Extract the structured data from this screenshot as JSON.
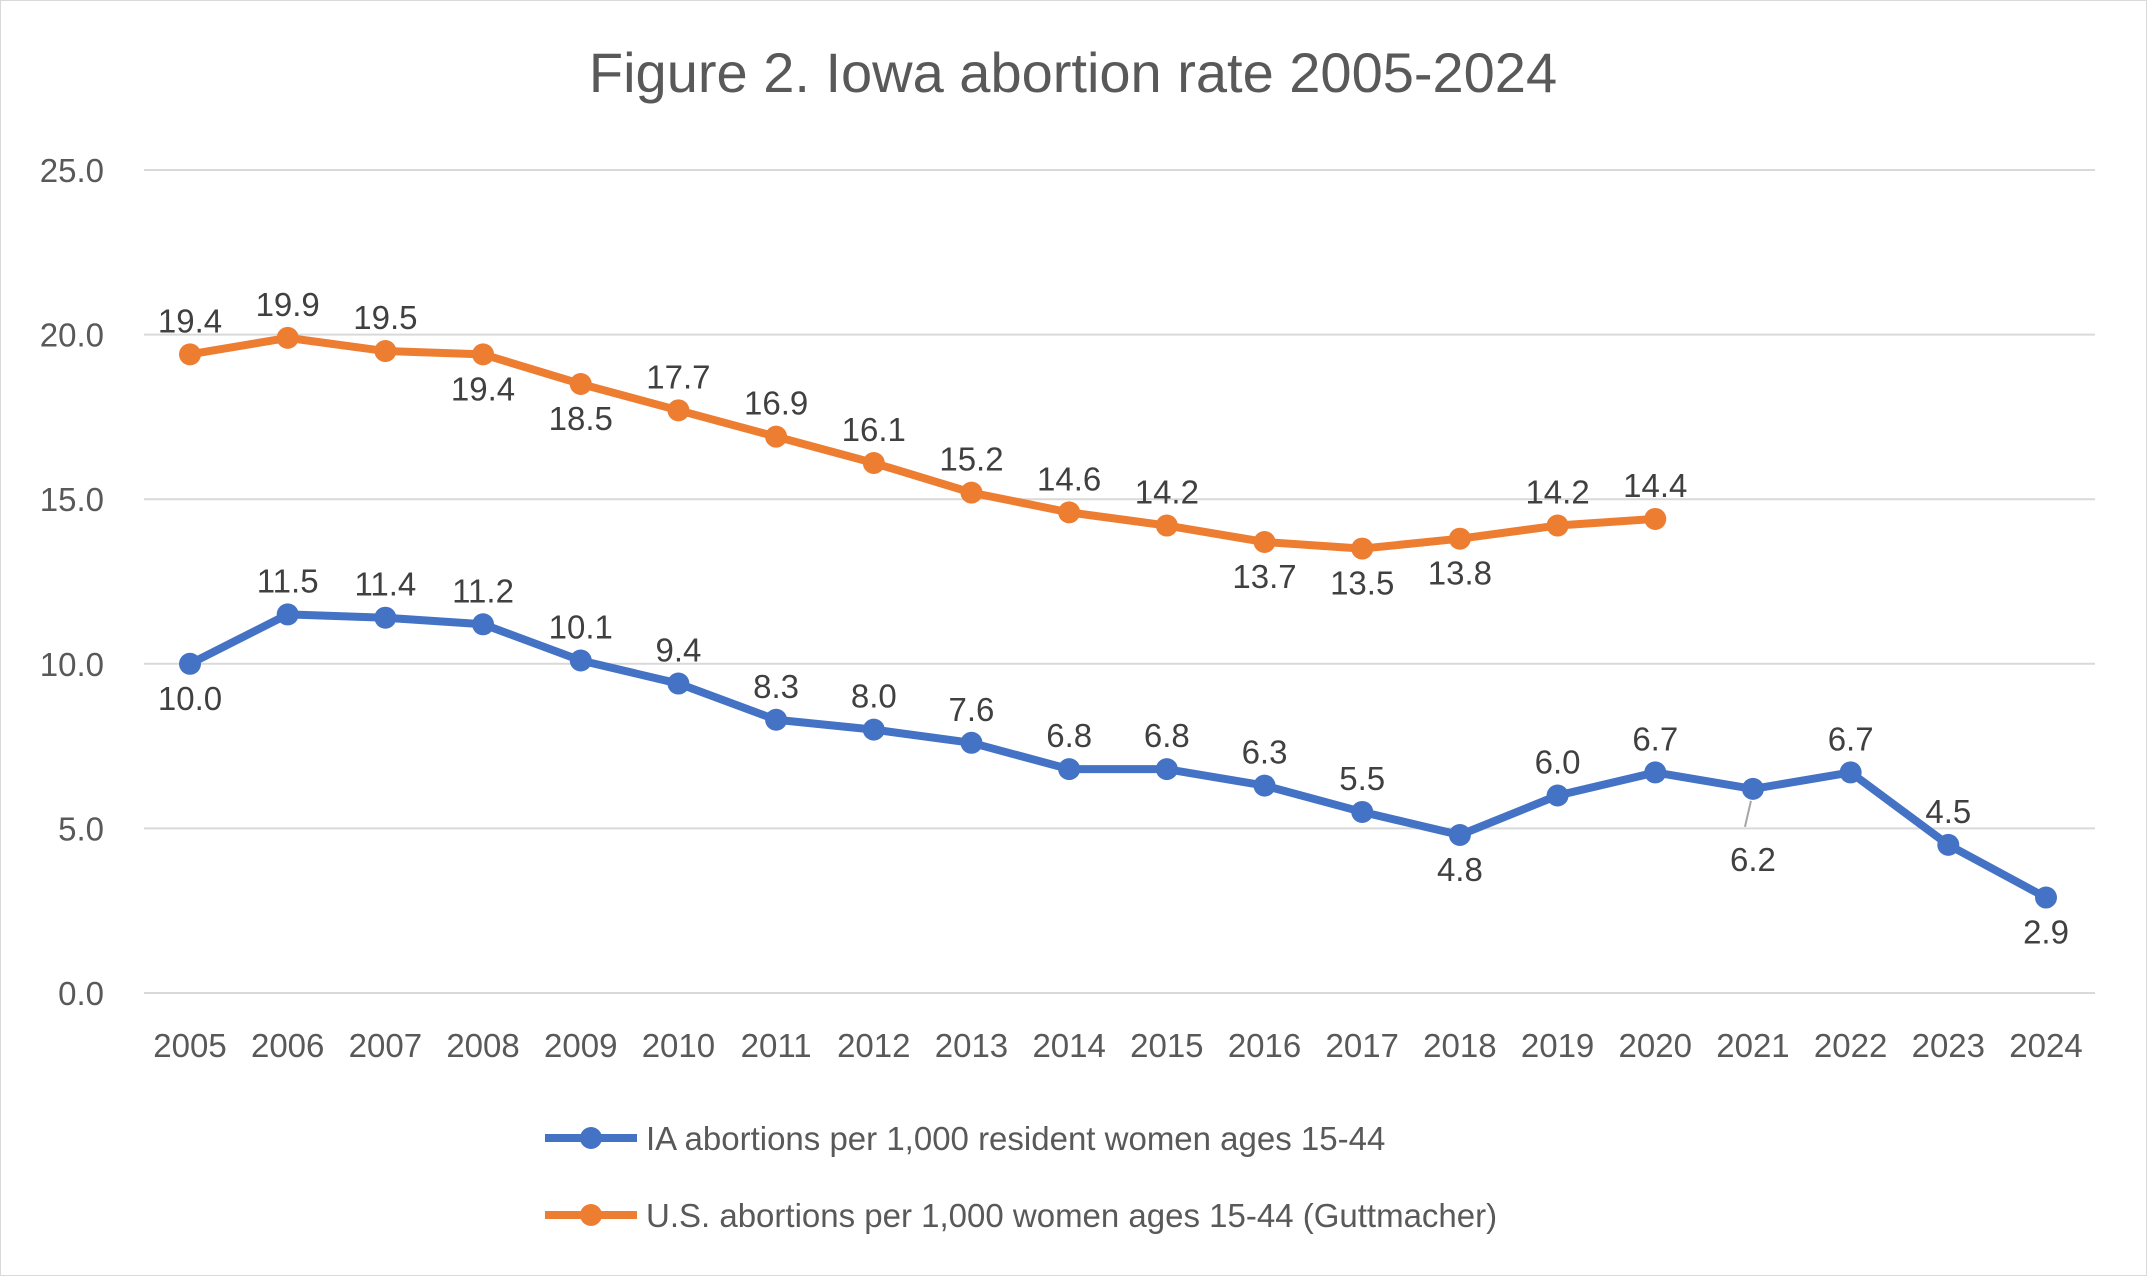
{
  "chart_data": {
    "type": "line",
    "title": "Figure 2. Iowa abortion rate 2005-2024",
    "xlabel": "",
    "ylabel": "",
    "ylim": [
      0,
      25
    ],
    "yticks": [
      "0.0",
      "5.0",
      "10.0",
      "15.0",
      "20.0",
      "25.0"
    ],
    "grid": true,
    "legend_position": "bottom",
    "categories": [
      "2005",
      "2006",
      "2007",
      "2008",
      "2009",
      "2010",
      "2011",
      "2012",
      "2013",
      "2014",
      "2015",
      "2016",
      "2017",
      "2018",
      "2019",
      "2020",
      "2021",
      "2022",
      "2023",
      "2024"
    ],
    "series": [
      {
        "name": "IA abortions per 1,000 resident women ages 15-44",
        "color": "#4472C4",
        "values": [
          10.0,
          11.5,
          11.4,
          11.2,
          10.1,
          9.4,
          8.3,
          8.0,
          7.6,
          6.8,
          6.8,
          6.3,
          5.5,
          4.8,
          6.0,
          6.7,
          6.2,
          6.7,
          4.5,
          2.9
        ],
        "labels": [
          "10.0",
          "11.5",
          "11.4",
          "11.2",
          "10.1",
          "9.4",
          "8.3",
          "8.0",
          "7.6",
          "6.8",
          "6.8",
          "6.3",
          "5.5",
          "4.8",
          "6.0",
          "6.7",
          "6.2",
          "6.7",
          "4.5",
          "2.9"
        ]
      },
      {
        "name": "U.S. abortions per 1,000 women ages 15-44 (Guttmacher)",
        "color": "#ED7D31",
        "values": [
          19.4,
          19.9,
          19.5,
          19.4,
          18.5,
          17.7,
          16.9,
          16.1,
          15.2,
          14.6,
          14.2,
          13.7,
          13.5,
          13.8,
          14.2,
          14.4,
          null,
          null,
          null,
          null
        ],
        "labels": [
          "19.4",
          "19.9",
          "19.5",
          "19.4",
          "18.5",
          "17.7",
          "16.9",
          "16.1",
          "15.2",
          "14.6",
          "14.2",
          "13.7",
          "13.5",
          "13.8",
          "14.2",
          "14.4",
          null,
          null,
          null,
          null
        ]
      }
    ]
  }
}
